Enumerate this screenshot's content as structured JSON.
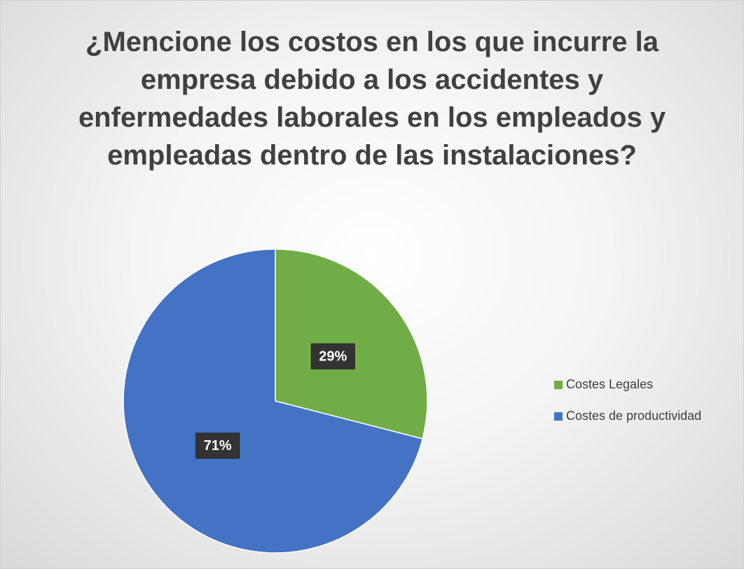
{
  "chart_data": {
    "type": "pie",
    "title": "¿Mencione los costos en los que incurre la empresa debido a los accidentes y enfermedades laborales en los empleados y empleadas dentro de las instalaciones?",
    "categories": [
      "Costes Legales",
      "Costes de productividad"
    ],
    "values": [
      29,
      71
    ],
    "value_labels": [
      "29%",
      "71%"
    ],
    "colors": [
      "#70ad47",
      "#4472c4"
    ],
    "legend": "right"
  }
}
